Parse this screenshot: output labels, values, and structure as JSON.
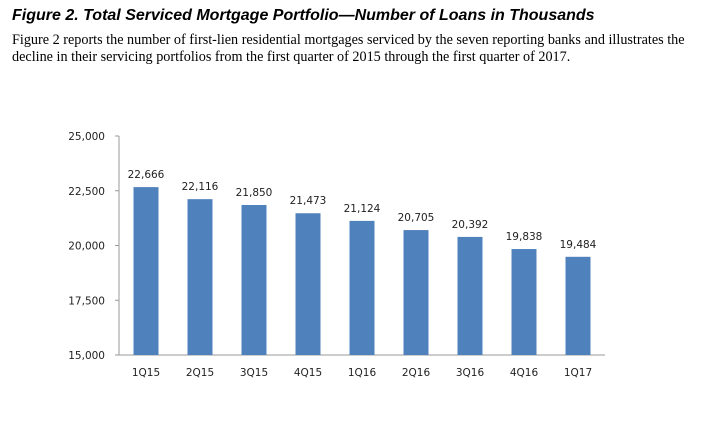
{
  "title": "Figure 2. Total Serviced Mortgage Portfolio—Number of Loans in Thousands",
  "description": "Figure 2 reports the number of first-lien residential mortgages serviced by the seven reporting banks and illustrates the decline in their servicing portfolios from the first quarter of 2015 through the first quarter of 2017.",
  "chart_data": {
    "type": "bar",
    "title": "",
    "xlabel": "",
    "ylabel": "",
    "categories": [
      "1Q15",
      "2Q15",
      "3Q15",
      "4Q15",
      "1Q16",
      "2Q16",
      "3Q16",
      "4Q16",
      "1Q17"
    ],
    "values": [
      22666,
      22116,
      21850,
      21473,
      21124,
      20705,
      20392,
      19838,
      19484
    ],
    "value_labels": [
      "22,666",
      "22,116",
      "21,850",
      "21,473",
      "21,124",
      "20,705",
      "20,392",
      "19,838",
      "19,484"
    ],
    "ylim": [
      15000,
      25000
    ],
    "yticks": [
      15000,
      17500,
      20000,
      22500,
      25000
    ],
    "ytick_labels": [
      "15,000",
      "17,500",
      "20,000",
      "22,500",
      "25,000"
    ],
    "grid": false,
    "bar_color": "#4f81bd"
  }
}
